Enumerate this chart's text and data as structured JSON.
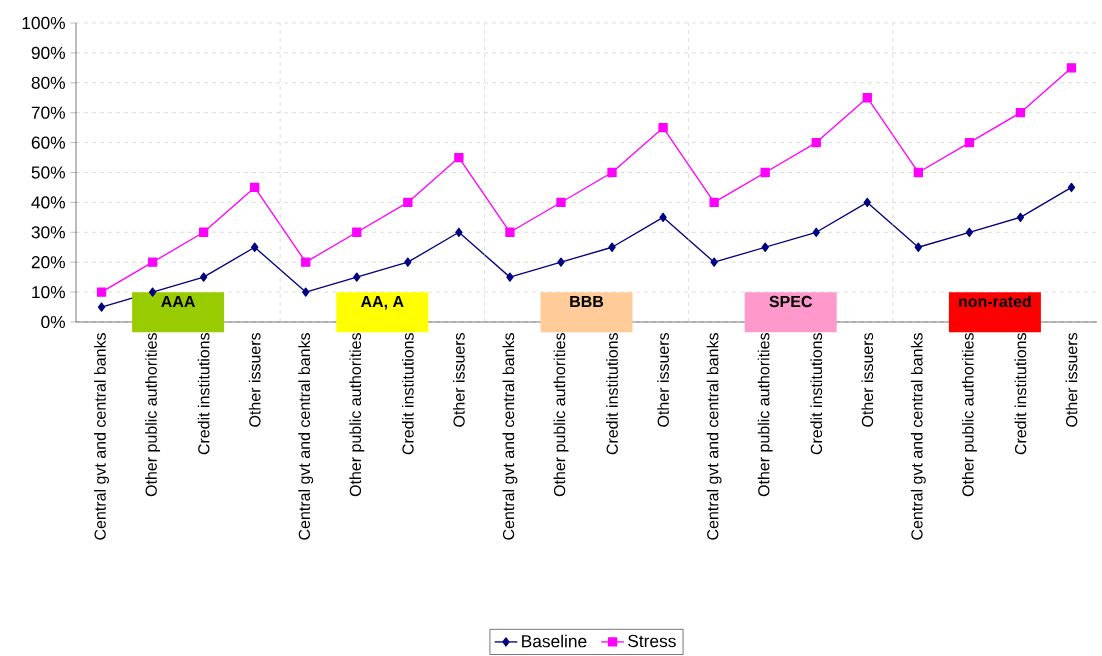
{
  "chart_data": {
    "type": "line",
    "categories": [
      "Central gvt and central banks",
      "Other public authorities",
      "Credit institutions",
      "Other issuers",
      "Central gvt and central banks",
      "Other public authorities",
      "Credit institutions",
      "Other issuers",
      "Central gvt and central banks",
      "Other public authorities",
      "Credit institutions",
      "Other issuers",
      "Central gvt and central banks",
      "Other public authorities",
      "Credit institutions",
      "Other issuers",
      "Central gvt and central banks",
      "Other public authorities",
      "Credit institutions",
      "Other issuers"
    ],
    "series": [
      {
        "name": "Baseline",
        "color": "#000080",
        "marker": "diamond",
        "values": [
          5,
          10,
          15,
          25,
          10,
          15,
          20,
          30,
          15,
          20,
          25,
          35,
          20,
          25,
          30,
          40,
          25,
          30,
          35,
          45
        ]
      },
      {
        "name": "Stress",
        "color": "#ff00ff",
        "marker": "square",
        "values": [
          10,
          20,
          30,
          45,
          20,
          30,
          40,
          55,
          30,
          40,
          50,
          65,
          40,
          50,
          60,
          75,
          50,
          60,
          70,
          85
        ]
      }
    ],
    "ylim": [
      0,
      100
    ],
    "yticks": [
      {
        "value": 0,
        "label": "0%"
      },
      {
        "value": 10,
        "label": "10%"
      },
      {
        "value": 20,
        "label": "20%"
      },
      {
        "value": 30,
        "label": "30%"
      },
      {
        "value": 40,
        "label": "40%"
      },
      {
        "value": 50,
        "label": "50%"
      },
      {
        "value": 60,
        "label": "60%"
      },
      {
        "value": 70,
        "label": "70%"
      },
      {
        "value": 80,
        "label": "80%"
      },
      {
        "value": 90,
        "label": "90%"
      },
      {
        "value": 100,
        "label": "100%"
      }
    ],
    "annotations": [
      "AAA",
      "AA, A",
      "BBB",
      "SPEC",
      "non-rated"
    ],
    "grid": true,
    "legend": "bottom",
    "line_style": "solid"
  }
}
